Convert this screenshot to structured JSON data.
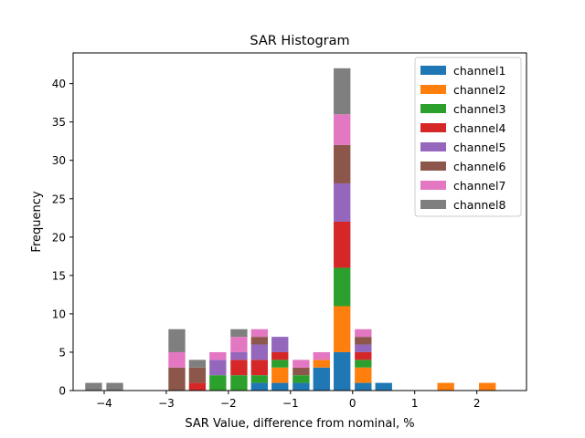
{
  "chart_data": {
    "type": "bar",
    "stacked": true,
    "title": "SAR Histogram",
    "xlabel": "SAR Value, difference from nominal, %",
    "ylabel": "Frequency",
    "xlim": [
      -4.5,
      2.8
    ],
    "ylim": [
      0,
      44
    ],
    "xticks": [
      -4,
      -3,
      -2,
      -1,
      0,
      1,
      2
    ],
    "xtick_labels": [
      "−4",
      "−3",
      "−2",
      "−1",
      "0",
      "1",
      "2"
    ],
    "yticks": [
      0,
      5,
      10,
      15,
      20,
      25,
      30,
      35,
      40
    ],
    "ytick_labels": [
      "0",
      "5",
      "10",
      "15",
      "20",
      "25",
      "30",
      "35",
      "40"
    ],
    "legend_position": "top-right",
    "bin_centers": [
      -4.17,
      -3.83,
      -3.5,
      -3.17,
      -2.83,
      -2.5,
      -2.17,
      -1.83,
      -1.5,
      -1.17,
      -0.83,
      -0.5,
      -0.17,
      0.17,
      0.5,
      0.83,
      1.17,
      1.5,
      1.83,
      2.17
    ],
    "bar_width": 0.27,
    "series": [
      {
        "name": "channel1",
        "color": "#1f77b4",
        "values": [
          0,
          0,
          0,
          0,
          0,
          0,
          0,
          0,
          1,
          1,
          1,
          3,
          5,
          1,
          1,
          0,
          0,
          0,
          0,
          0
        ]
      },
      {
        "name": "channel2",
        "color": "#ff7f0e",
        "values": [
          0,
          0,
          0,
          0,
          0,
          0,
          0,
          0,
          0,
          2,
          0,
          1,
          6,
          2,
          0,
          0,
          0,
          1,
          0,
          1
        ]
      },
      {
        "name": "channel3",
        "color": "#2ca02c",
        "values": [
          0,
          0,
          0,
          0,
          0,
          0,
          2,
          2,
          1,
          1,
          1,
          0,
          5,
          1,
          0,
          0,
          0,
          0,
          0,
          0
        ]
      },
      {
        "name": "channel4",
        "color": "#d62728",
        "values": [
          0,
          0,
          0,
          0,
          0,
          1,
          0,
          2,
          2,
          1,
          0,
          0,
          6,
          1,
          0,
          0,
          0,
          0,
          0,
          0
        ]
      },
      {
        "name": "channel5",
        "color": "#9467bd",
        "values": [
          0,
          0,
          0,
          0,
          0,
          0,
          2,
          1,
          2,
          2,
          0,
          0,
          5,
          1,
          0,
          0,
          0,
          0,
          0,
          0
        ]
      },
      {
        "name": "channel6",
        "color": "#8c564b",
        "values": [
          0,
          0,
          0,
          0,
          3,
          2,
          0,
          0,
          1,
          0,
          1,
          0,
          5,
          1,
          0,
          0,
          0,
          0,
          0,
          0
        ]
      },
      {
        "name": "channel7",
        "color": "#e377c2",
        "values": [
          0,
          0,
          0,
          0,
          2,
          0,
          1,
          2,
          1,
          0,
          1,
          1,
          4,
          1,
          0,
          0,
          0,
          0,
          0,
          0
        ]
      },
      {
        "name": "channel8",
        "color": "#7f7f7f",
        "values": [
          1,
          1,
          0,
          0,
          3,
          1,
          0,
          1,
          0,
          0,
          0,
          0,
          6,
          0,
          0,
          0,
          0,
          0,
          0,
          0
        ]
      }
    ]
  }
}
